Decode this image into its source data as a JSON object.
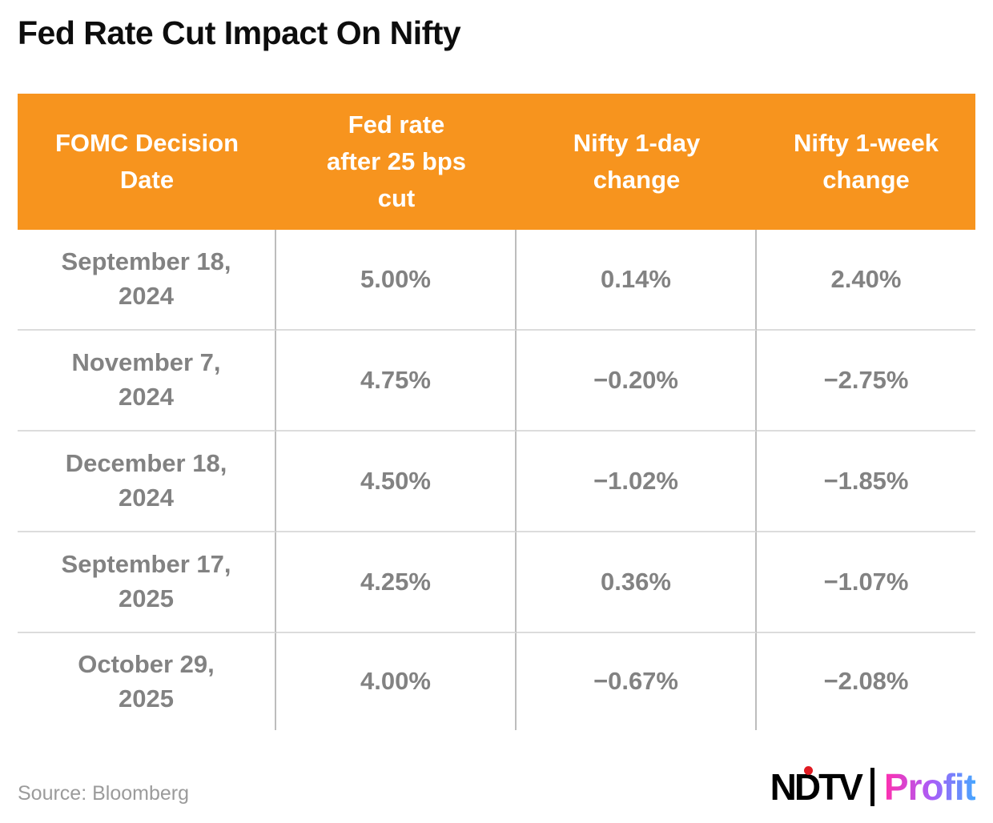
{
  "title": "Fed Rate Cut Impact On Nifty",
  "source_label": "Source: Bloomberg",
  "logo": {
    "ndtv": "NDTV",
    "profit": "Profit"
  },
  "colors": {
    "header_bg": "#F7941E",
    "body_text": "#828282",
    "ndtv_dot_red": "#E01A22",
    "profit_gradient": [
      "#FF2FAE",
      "#A95DF8",
      "#46A6FF"
    ]
  },
  "table_display": {
    "headers": [
      "FOMC Decision\nDate",
      "Fed rate\nafter 25 bps\ncut",
      "Nifty 1-day\nchange",
      "Nifty 1-week\nchange"
    ],
    "rows": [
      [
        "September 18,\n2024",
        "5.00%",
        "0.14%",
        "2.40%"
      ],
      [
        "November 7,\n2024",
        "4.75%",
        "−0.20%",
        "−2.75%"
      ],
      [
        "December 18,\n2024",
        "4.50%",
        "−1.02%",
        "−1.85%"
      ],
      [
        "September 17,\n2025",
        "4.25%",
        "0.36%",
        "−1.07%"
      ],
      [
        "October 29,\n2025",
        "4.00%",
        "−0.67%",
        "−2.08%"
      ]
    ]
  },
  "chart_data": {
    "type": "table",
    "title": "Fed Rate Cut Impact On Nifty",
    "columns": [
      "FOMC Decision Date",
      "Fed rate after 25 bps cut",
      "Nifty 1-day change",
      "Nifty 1-week change"
    ],
    "rows": [
      [
        "September 18, 2024",
        "5.00%",
        "0.14%",
        "2.40%"
      ],
      [
        "November 7, 2024",
        "4.75%",
        "-0.20%",
        "-2.75%"
      ],
      [
        "December 18, 2024",
        "4.50%",
        "-1.02%",
        "-1.85%"
      ],
      [
        "September 17, 2025",
        "4.25%",
        "0.36%",
        "-1.07%"
      ],
      [
        "October 29, 2025",
        "4.00%",
        "-0.67%",
        "-2.08%"
      ]
    ],
    "source": "Bloomberg"
  }
}
